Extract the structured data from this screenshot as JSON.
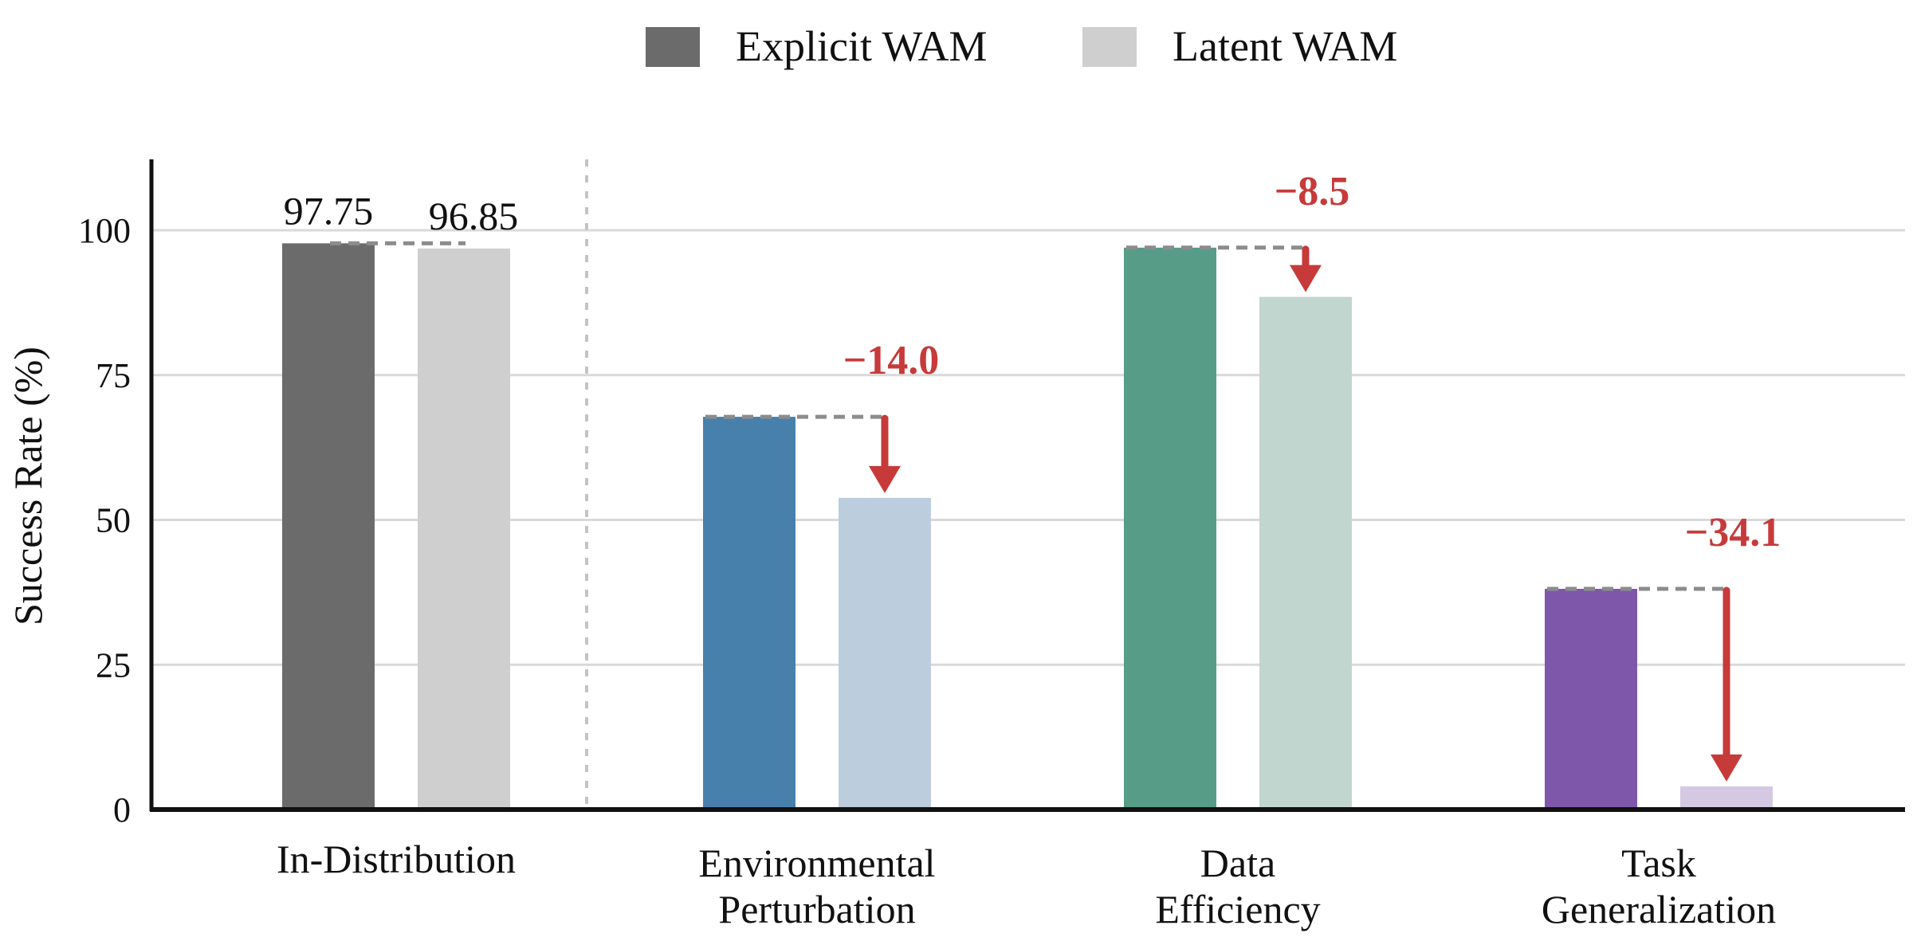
{
  "chart_data": {
    "type": "bar",
    "ylabel": "Success Rate (%)",
    "xlabel": "",
    "ylim": [
      0,
      112
    ],
    "yticks": [
      0,
      25,
      50,
      75,
      100
    ],
    "grid": "horizontal",
    "legend_position": "top-center",
    "legend": [
      {
        "label": "Explicit WAM",
        "color": "#6b6b6b"
      },
      {
        "label": "Latent WAM",
        "color": "#cfcfcf"
      }
    ],
    "categories": [
      {
        "lines": [
          "In-Distribution"
        ]
      },
      {
        "lines": [
          "Environmental",
          "Perturbation"
        ]
      },
      {
        "lines": [
          "Data",
          "Efficiency"
        ]
      },
      {
        "lines": [
          "Task",
          "Generalization"
        ]
      }
    ],
    "series": [
      {
        "name": "Explicit WAM",
        "values": [
          97.75,
          67.8,
          97.0,
          38.1
        ],
        "colors": [
          "#6b6b6b",
          "#4780ab",
          "#579c86",
          "#7e57ab"
        ]
      },
      {
        "name": "Latent WAM",
        "values": [
          96.85,
          53.8,
          88.5,
          4.0
        ],
        "colors": [
          "#cfcfcf",
          "#bccede",
          "#c0d6ce",
          "#d4c8e2"
        ]
      }
    ],
    "value_labels": [
      "97.75",
      "96.85"
    ],
    "annotations": [
      {
        "category": 1,
        "text": "−14.0"
      },
      {
        "category": 2,
        "text": "−8.5"
      },
      {
        "category": 3,
        "text": "−34.1"
      }
    ],
    "annotation_color": "#c73a3a",
    "reference_line_color": "#8c8c8c",
    "separator_after_category": 0
  }
}
